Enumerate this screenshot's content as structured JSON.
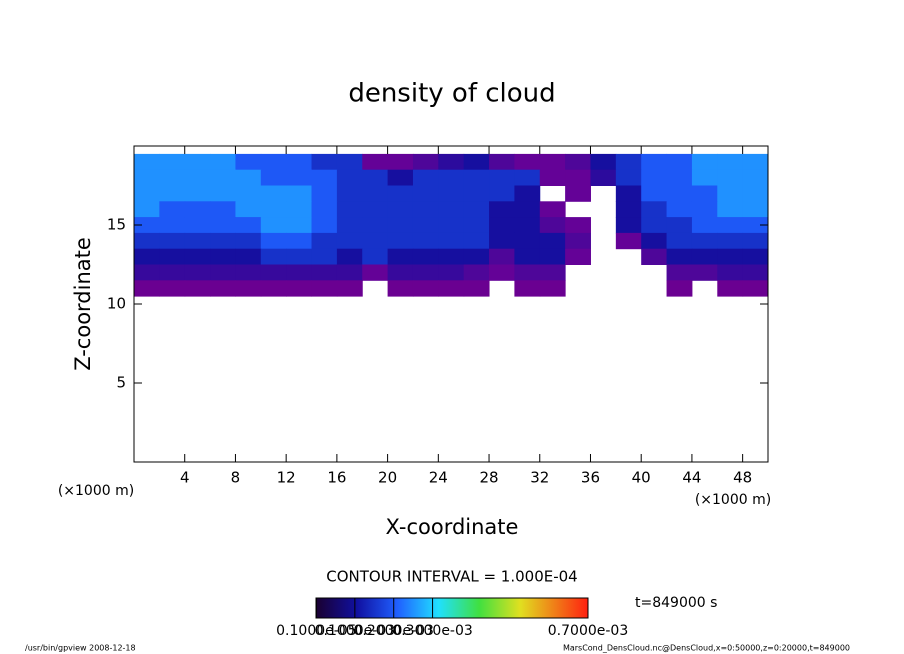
{
  "chart_data": {
    "type": "contour",
    "title": "density of cloud",
    "x_label": "X-coordinate",
    "y_label": "Z-coordinate",
    "x_unit": "(×1000 m)",
    "y_unit": "(×1000 m)",
    "xlim": [
      0,
      50
    ],
    "xticks": [
      4,
      8,
      12,
      16,
      20,
      24,
      28,
      32,
      36,
      40,
      44,
      48
    ],
    "ylim": [
      0,
      20
    ],
    "yticks": [
      5,
      10,
      15
    ],
    "x": [
      1,
      3,
      5,
      7,
      9,
      11,
      13,
      15,
      17,
      19,
      21,
      23,
      25,
      27,
      29,
      31,
      33,
      35,
      37,
      39,
      41,
      43,
      45,
      47,
      49
    ],
    "z": [
      19,
      18,
      17,
      16,
      15,
      14,
      13,
      12,
      11
    ],
    "values": [
      [
        0.00025,
        0.00025,
        0.00025,
        0.00025,
        0.0002,
        0.0002,
        0.0002,
        0.00015,
        0.00015,
        3e-05,
        3e-05,
        5e-05,
        8e-05,
        0.0001,
        5e-05,
        3e-05,
        3e-05,
        5e-05,
        0.0001,
        0.00015,
        0.0002,
        0.0002,
        0.00025,
        0.00025,
        0.00025
      ],
      [
        0.00025,
        0.00025,
        0.00025,
        0.00025,
        0.00025,
        0.0002,
        0.0002,
        0.0002,
        0.00015,
        0.00015,
        0.0001,
        0.00015,
        0.00015,
        0.00015,
        0.00015,
        0.00015,
        3e-05,
        3e-05,
        8e-05,
        0.00015,
        0.0002,
        0.0002,
        0.00025,
        0.00025,
        0.00025
      ],
      [
        0.00025,
        0.00025,
        0.00025,
        0.00025,
        0.00025,
        0.00025,
        0.00025,
        0.0002,
        0.00015,
        0.00015,
        0.00015,
        0.00015,
        0.00015,
        0.00015,
        0.00015,
        0.0001,
        null,
        3e-05,
        null,
        0.0001,
        0.0002,
        0.0002,
        0.0002,
        0.00025,
        0.00025
      ],
      [
        0.00025,
        0.0002,
        0.0002,
        0.0002,
        0.00025,
        0.00025,
        0.00025,
        0.0002,
        0.00015,
        0.00015,
        0.00015,
        0.00015,
        0.00015,
        0.00015,
        0.0001,
        0.0001,
        3e-05,
        null,
        null,
        0.0001,
        0.00015,
        0.0002,
        0.0002,
        0.00025,
        0.00025
      ],
      [
        0.0002,
        0.0002,
        0.0002,
        0.0002,
        0.0002,
        0.00025,
        0.00025,
        0.0002,
        0.00015,
        0.00015,
        0.00015,
        0.00015,
        0.00015,
        0.00015,
        0.0001,
        0.0001,
        5e-05,
        3e-05,
        null,
        0.0001,
        0.00015,
        0.00015,
        0.0002,
        0.0002,
        0.0002
      ],
      [
        0.00015,
        0.00015,
        0.00015,
        0.00015,
        0.00015,
        0.0002,
        0.0002,
        0.00015,
        0.00015,
        0.00015,
        0.00015,
        0.00015,
        0.00015,
        0.00015,
        0.0001,
        0.0001,
        0.0001,
        5e-05,
        null,
        3e-05,
        0.0001,
        0.00015,
        0.00015,
        0.00015,
        0.00015
      ],
      [
        0.0001,
        0.0001,
        0.0001,
        0.0001,
        0.0001,
        0.00015,
        0.00015,
        0.00015,
        0.0001,
        0.00015,
        0.0001,
        0.0001,
        0.0001,
        0.0001,
        5e-05,
        0.0001,
        0.0001,
        3e-05,
        null,
        null,
        5e-05,
        0.0001,
        0.0001,
        0.0001,
        0.0001
      ],
      [
        7e-05,
        7e-05,
        7e-05,
        7e-05,
        7e-05,
        7e-05,
        7e-05,
        7e-05,
        7e-05,
        3e-05,
        7e-05,
        7e-05,
        7e-05,
        5e-05,
        3e-05,
        5e-05,
        5e-05,
        null,
        null,
        null,
        null,
        5e-05,
        5e-05,
        7e-05,
        7e-05
      ],
      [
        2e-05,
        2e-05,
        2e-05,
        2e-05,
        2e-05,
        2e-05,
        2e-05,
        2e-05,
        2e-05,
        null,
        2e-05,
        2e-05,
        2e-05,
        2e-05,
        null,
        2e-05,
        2e-05,
        null,
        null,
        null,
        null,
        2e-05,
        null,
        2e-05,
        2e-05
      ]
    ],
    "contour_interval": "CONTOUR INTERVAL = 1.000E-04",
    "time": "t=849000 s",
    "colorbar_lim": [
      0,
      0.0007
    ],
    "colorbar_ticks": [
      {
        "value": 1e-06,
        "label": "0.1000e-05"
      },
      {
        "value": 0.0001,
        "label": "0.1000e-03"
      },
      {
        "value": 0.0002,
        "label": "0.2000e-03"
      },
      {
        "value": 0.0003,
        "label": "0.3000e-03"
      },
      {
        "value": 0.0007,
        "label": "0.7000e-03"
      }
    ],
    "footer_left": "/usr/bin/gpview   2008-12-18",
    "footer_right": "MarsCond_DensCloud.nc@DensCloud,x=0:50000,z=0:20000,t=849000"
  }
}
